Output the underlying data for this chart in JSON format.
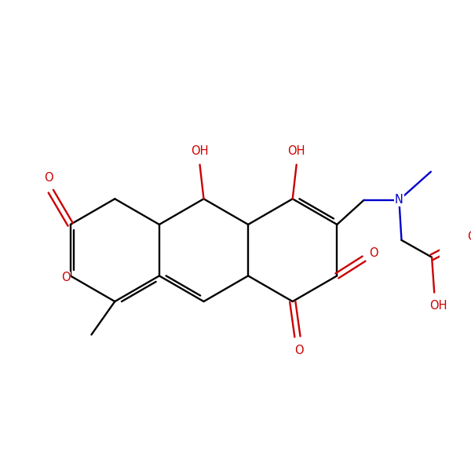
{
  "bg": "#ffffff",
  "black": "#000000",
  "red": "#cc0000",
  "blue": "#0000cc",
  "figsize": [
    6.0,
    6.0
  ],
  "dpi": 100,
  "xlim": [
    0.5,
    9.5
  ],
  "ylim": [
    1.5,
    8.5
  ],
  "bond_lw": 1.7,
  "font_size": 10.5
}
